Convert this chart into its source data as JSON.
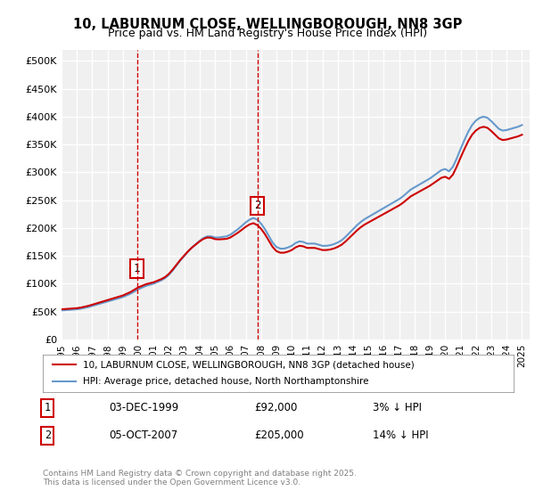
{
  "title1": "10, LABURNUM CLOSE, WELLINGBOROUGH, NN8 3GP",
  "title2": "Price paid vs. HM Land Registry's House Price Index (HPI)",
  "ylabel": "",
  "yticks": [
    0,
    50000,
    100000,
    150000,
    200000,
    250000,
    300000,
    350000,
    400000,
    450000,
    500000
  ],
  "ytick_labels": [
    "£0",
    "£50K",
    "£100K",
    "£150K",
    "£200K",
    "£250K",
    "£300K",
    "£350K",
    "£400K",
    "£450K",
    "£500K"
  ],
  "xlim_start": 1995.0,
  "xlim_end": 2025.5,
  "ylim_min": 0,
  "ylim_max": 520000,
  "background_color": "#ffffff",
  "plot_bg_color": "#f0f0f0",
  "grid_color": "#ffffff",
  "red_line_color": "#cc0000",
  "blue_line_color": "#6699cc",
  "marker1_x": 1999.92,
  "marker1_y": 92000,
  "marker2_x": 2007.76,
  "marker2_y": 205000,
  "marker1_label": "1",
  "marker2_label": "2",
  "vline_color": "#cc0000",
  "legend_line1": "10, LABURNUM CLOSE, WELLINGBOROUGH, NN8 3GP (detached house)",
  "legend_line2": "HPI: Average price, detached house, North Northamptonshire",
  "annot1_num": "1",
  "annot1_date": "03-DEC-1999",
  "annot1_price": "£92,000",
  "annot1_hpi": "3% ↓ HPI",
  "annot2_num": "2",
  "annot2_date": "05-OCT-2007",
  "annot2_price": "£205,000",
  "annot2_hpi": "14% ↓ HPI",
  "footer": "Contains HM Land Registry data © Crown copyright and database right 2025.\nThis data is licensed under the Open Government Licence v3.0.",
  "hpi_data_x": [
    1995.0,
    1995.25,
    1995.5,
    1995.75,
    1996.0,
    1996.25,
    1996.5,
    1996.75,
    1997.0,
    1997.25,
    1997.5,
    1997.75,
    1998.0,
    1998.25,
    1998.5,
    1998.75,
    1999.0,
    1999.25,
    1999.5,
    1999.75,
    2000.0,
    2000.25,
    2000.5,
    2000.75,
    2001.0,
    2001.25,
    2001.5,
    2001.75,
    2002.0,
    2002.25,
    2002.5,
    2002.75,
    2003.0,
    2003.25,
    2003.5,
    2003.75,
    2004.0,
    2004.25,
    2004.5,
    2004.75,
    2005.0,
    2005.25,
    2005.5,
    2005.75,
    2006.0,
    2006.25,
    2006.5,
    2006.75,
    2007.0,
    2007.25,
    2007.5,
    2007.75,
    2008.0,
    2008.25,
    2008.5,
    2008.75,
    2009.0,
    2009.25,
    2009.5,
    2009.75,
    2010.0,
    2010.25,
    2010.5,
    2010.75,
    2011.0,
    2011.25,
    2011.5,
    2011.75,
    2012.0,
    2012.25,
    2012.5,
    2012.75,
    2013.0,
    2013.25,
    2013.5,
    2013.75,
    2014.0,
    2014.25,
    2014.5,
    2014.75,
    2015.0,
    2015.25,
    2015.5,
    2015.75,
    2016.0,
    2016.25,
    2016.5,
    2016.75,
    2017.0,
    2017.25,
    2017.5,
    2017.75,
    2018.0,
    2018.25,
    2018.5,
    2018.75,
    2019.0,
    2019.25,
    2019.5,
    2019.75,
    2020.0,
    2020.25,
    2020.5,
    2020.75,
    2021.0,
    2021.25,
    2021.5,
    2021.75,
    2022.0,
    2022.25,
    2022.5,
    2022.75,
    2023.0,
    2023.25,
    2023.5,
    2023.75,
    2024.0,
    2024.25,
    2024.5,
    2024.75,
    2025.0
  ],
  "hpi_data_y": [
    52000,
    52500,
    53000,
    53500,
    54000,
    55000,
    56500,
    58000,
    60000,
    62000,
    64000,
    66000,
    68000,
    70000,
    72000,
    74000,
    76000,
    79000,
    82000,
    86000,
    90000,
    93000,
    96000,
    98000,
    100000,
    103000,
    106000,
    110000,
    116000,
    124000,
    133000,
    142000,
    150000,
    158000,
    165000,
    171000,
    177000,
    182000,
    185000,
    185000,
    183000,
    183000,
    184000,
    185000,
    188000,
    193000,
    198000,
    204000,
    210000,
    215000,
    218000,
    215000,
    208000,
    198000,
    186000,
    174000,
    166000,
    163000,
    163000,
    165000,
    168000,
    173000,
    176000,
    175000,
    172000,
    172000,
    172000,
    170000,
    168000,
    168000,
    169000,
    171000,
    174000,
    178000,
    184000,
    191000,
    198000,
    205000,
    211000,
    216000,
    220000,
    224000,
    228000,
    232000,
    236000,
    240000,
    244000,
    248000,
    252000,
    257000,
    263000,
    269000,
    273000,
    277000,
    281000,
    285000,
    289000,
    294000,
    299000,
    304000,
    306000,
    302000,
    310000,
    325000,
    342000,
    358000,
    373000,
    385000,
    393000,
    398000,
    400000,
    398000,
    392000,
    385000,
    378000,
    375000,
    376000,
    378000,
    380000,
    382000,
    385000
  ],
  "sale_data_x": [
    1999.92,
    2007.76
  ],
  "sale_data_y": [
    92000,
    205000
  ],
  "xtick_years": [
    1995,
    1996,
    1997,
    1998,
    1999,
    2000,
    2001,
    2002,
    2003,
    2004,
    2005,
    2006,
    2007,
    2008,
    2009,
    2010,
    2011,
    2012,
    2013,
    2014,
    2015,
    2016,
    2017,
    2018,
    2019,
    2020,
    2021,
    2022,
    2023,
    2024,
    2025
  ]
}
